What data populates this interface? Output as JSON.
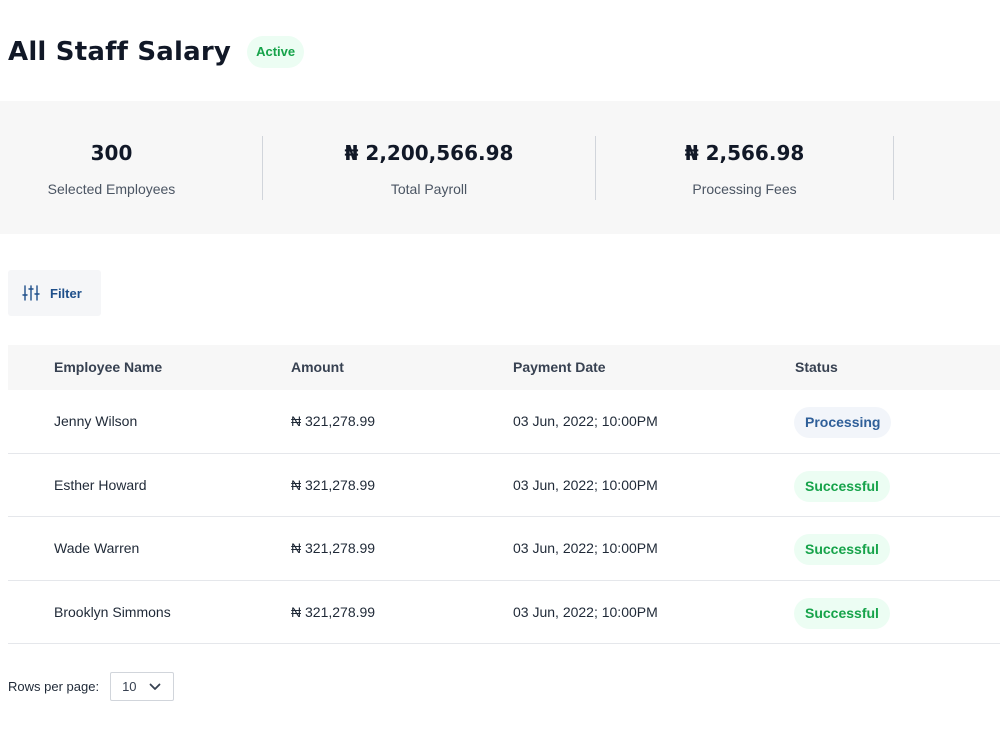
{
  "header": {
    "title": "All Staff Salary",
    "status_badge": "Active"
  },
  "summary": {
    "stats": [
      {
        "value": "300",
        "label": "Selected Employees"
      },
      {
        "value": "₦ 2,200,566.98",
        "label": "Total Payroll"
      },
      {
        "value": "₦ 2,566.98",
        "label": "Processing Fees"
      }
    ]
  },
  "toolbar": {
    "filter_label": "Filter",
    "filter_icon": "sliders-icon"
  },
  "table": {
    "columns": [
      "Employee Name",
      "Amount",
      "Payment Date",
      "Status"
    ],
    "rows": [
      {
        "name": "Jenny Wilson",
        "amount": "₦ 321,278.99",
        "date": "03 Jun, 2022; 10:00PM",
        "status": "Processing"
      },
      {
        "name": "Esther Howard",
        "amount": "₦ 321,278.99",
        "date": "03 Jun, 2022; 10:00PM",
        "status": "Successful"
      },
      {
        "name": "Wade Warren",
        "amount": "₦ 321,278.99",
        "date": "03 Jun, 2022; 10:00PM",
        "status": "Successful"
      },
      {
        "name": "Brooklyn Simmons",
        "amount": "₦ 321,278.99",
        "date": "03 Jun, 2022; 10:00PM",
        "status": "Successful"
      }
    ]
  },
  "pagination": {
    "rows_per_page_label": "Rows per page:",
    "rows_per_page_value": "10",
    "dropdown_icon": "chevron-down-icon"
  },
  "colors": {
    "success_text": "#16a34a",
    "success_bg": "#ecfdf3",
    "processing_text": "#2f5f99",
    "processing_bg": "#f2f5fa",
    "accent_blue": "#1e4f8a"
  }
}
